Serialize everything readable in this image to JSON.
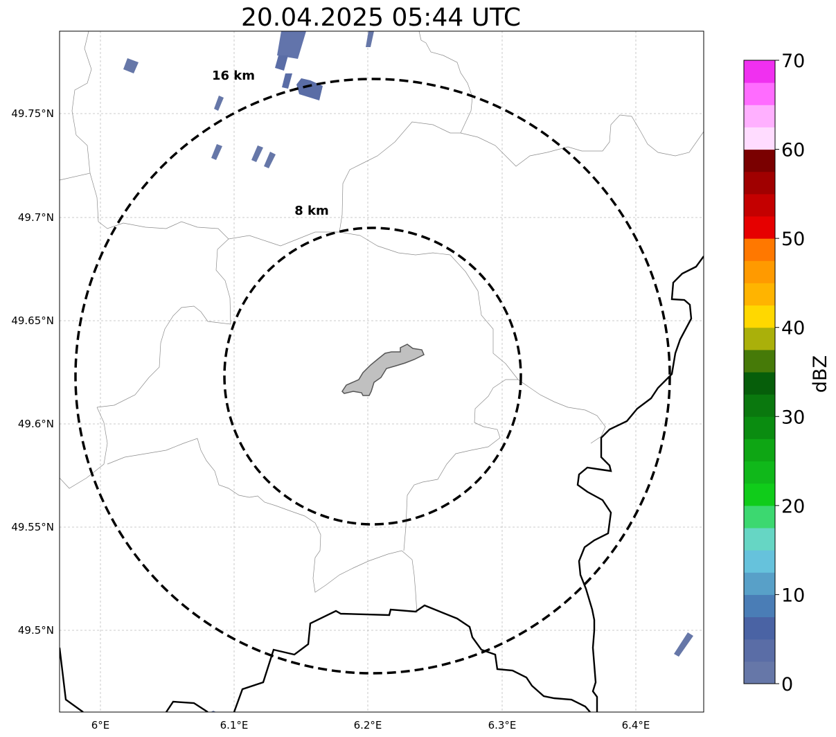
{
  "title": "20.04.2025 05:44 UTC",
  "map": {
    "lon_labels": [
      "6°E",
      "6.1°E",
      "6.2°E",
      "6.3°E",
      "6.4°E"
    ],
    "lat_labels": [
      "49.75°N",
      "49.7°N",
      "49.65°N",
      "49.6°N",
      "49.55°N",
      "49.5°N"
    ],
    "gridlines": true,
    "range_rings": [
      {
        "label": "16 km",
        "radius_km": 16
      },
      {
        "label": "8 km",
        "radius_km": 8
      }
    ]
  },
  "colorbar": {
    "label": "dBZ",
    "ticks": [
      "0",
      "10",
      "20",
      "30",
      "40",
      "50",
      "60",
      "70"
    ],
    "colors": [
      "#6677a8",
      "#5a6da6",
      "#4a63a4",
      "#4a7db6",
      "#58a0c8",
      "#66c2dc",
      "#66d6c4",
      "#3cd870",
      "#10cc1a",
      "#10b81a",
      "#0ea614",
      "#0a8c10",
      "#0a780e",
      "#065e0a",
      "#467a08",
      "#aab00a",
      "#ffd800",
      "#ffb400",
      "#ff9a00",
      "#ff7800",
      "#e60000",
      "#c40000",
      "#a00000",
      "#7a0000",
      "#ffdcff",
      "#ffb0ff",
      "#ff6cff",
      "#f030f0"
    ]
  }
}
